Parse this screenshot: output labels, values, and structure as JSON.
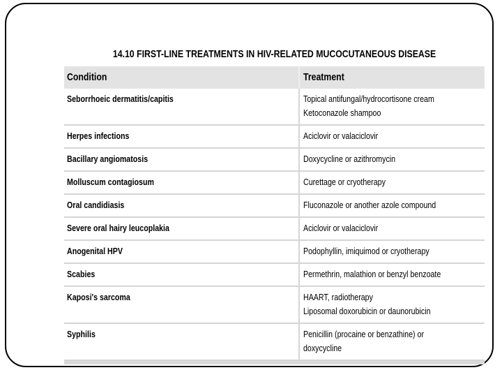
{
  "slide": {
    "table": {
      "title": "14.10 FIRST-LINE TREATMENTS IN HIV-RELATED MUCOCUTANEOUS DISEASE",
      "columns": [
        "Condition",
        "Treatment"
      ],
      "rows": [
        {
          "condition": "Seborrhoeic dermatitis/capitis",
          "treatment": "Topical antifungal/hydrocortisone cream\nKetoconazole shampoo"
        },
        {
          "condition": "Herpes infections",
          "treatment": "Aciclovir or valaciclovir"
        },
        {
          "condition": "Bacillary angiomatosis",
          "treatment": "Doxycycline or azithromycin"
        },
        {
          "condition": "Molluscum contagiosum",
          "treatment": "Curettage or cryotherapy"
        },
        {
          "condition": "Oral candidiasis",
          "treatment": "Fluconazole or another azole compound"
        },
        {
          "condition": "Severe oral hairy leucoplakia",
          "treatment": "Aciclovir or valaciclovir"
        },
        {
          "condition": "Anogenital HPV",
          "treatment": "Podophyllin, imiquimod or cryotherapy"
        },
        {
          "condition": "Scabies",
          "treatment": "Permethrin, malathion or benzyl benzoate"
        },
        {
          "condition": "Kaposi's sarcoma",
          "treatment": "HAART, radiotherapy\nLiposomal doxorubicin or daunorubicin"
        },
        {
          "condition": "Syphilis",
          "treatment": "Penicillin (procaine or benzathine) or doxycycline"
        }
      ]
    },
    "colors": {
      "header_bg": "#e3e3e3",
      "row_separator": "#d5d5d5",
      "bottom_strip": "#d9d9d9",
      "slide_border": "#000000",
      "text": "#000000"
    }
  }
}
